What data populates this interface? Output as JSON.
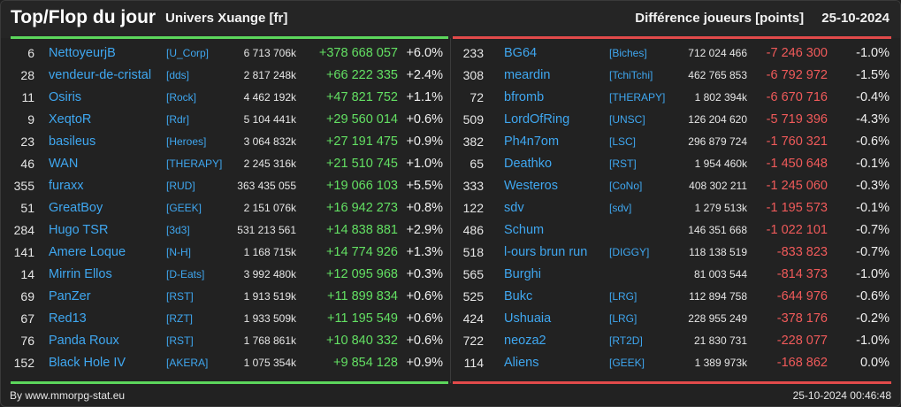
{
  "header": {
    "title": "Top/Flop du jour",
    "universe": "Univers Xuange [fr]",
    "metric": "Différence joueurs [points]",
    "date": "25-10-2024"
  },
  "colors": {
    "background": "#222222",
    "link": "#3fa7f0",
    "positive": "#63e063",
    "negative": "#f05a5a",
    "top_bar": "#5cd65c",
    "flop_bar": "#e24a4a"
  },
  "top": [
    {
      "rank": "6",
      "player": "NettoyeurjB",
      "alliance": "[U_Corp]",
      "points": "6 713 706k",
      "diff": "+378 668 057",
      "pct": "+6.0%"
    },
    {
      "rank": "28",
      "player": "vendeur-de-cristal",
      "alliance": "[dds]",
      "points": "2 817 248k",
      "diff": "+66 222 335",
      "pct": "+2.4%"
    },
    {
      "rank": "11",
      "player": "Osiris",
      "alliance": "[Rock]",
      "points": "4 462 192k",
      "diff": "+47 821 752",
      "pct": "+1.1%"
    },
    {
      "rank": "9",
      "player": "XeqtoR",
      "alliance": "[Rdr]",
      "points": "5 104 441k",
      "diff": "+29 560 014",
      "pct": "+0.6%"
    },
    {
      "rank": "23",
      "player": "basileus",
      "alliance": "[Heroes]",
      "points": "3 064 832k",
      "diff": "+27 191 475",
      "pct": "+0.9%"
    },
    {
      "rank": "46",
      "player": "WAN",
      "alliance": "[THERAPY]",
      "points": "2 245 316k",
      "diff": "+21 510 745",
      "pct": "+1.0%"
    },
    {
      "rank": "355",
      "player": "furaxx",
      "alliance": "[RUD]",
      "points": "363 435 055",
      "diff": "+19 066 103",
      "pct": "+5.5%"
    },
    {
      "rank": "51",
      "player": "GreatBoy",
      "alliance": "[GEEK]",
      "points": "2 151 076k",
      "diff": "+16 942 273",
      "pct": "+0.8%"
    },
    {
      "rank": "284",
      "player": "Hugo TSR",
      "alliance": "[3d3]",
      "points": "531 213 561",
      "diff": "+14 838 881",
      "pct": "+2.9%"
    },
    {
      "rank": "141",
      "player": "Amere Loque",
      "alliance": "[N-H]",
      "points": "1 168 715k",
      "diff": "+14 774 926",
      "pct": "+1.3%"
    },
    {
      "rank": "14",
      "player": "Mirrin Ellos",
      "alliance": "[D-Eats]",
      "points": "3 992 480k",
      "diff": "+12 095 968",
      "pct": "+0.3%"
    },
    {
      "rank": "69",
      "player": "PanZer",
      "alliance": "[RST]",
      "points": "1 913 519k",
      "diff": "+11 899 834",
      "pct": "+0.6%"
    },
    {
      "rank": "67",
      "player": "Red13",
      "alliance": "[RZT]",
      "points": "1 933 509k",
      "diff": "+11 195 549",
      "pct": "+0.6%"
    },
    {
      "rank": "76",
      "player": "Panda Roux",
      "alliance": "[RST]",
      "points": "1 768 861k",
      "diff": "+10 840 332",
      "pct": "+0.6%"
    },
    {
      "rank": "152",
      "player": "Black Hole IV",
      "alliance": "[AKERA]",
      "points": "1 075 354k",
      "diff": "+9 854 128",
      "pct": "+0.9%"
    }
  ],
  "flop": [
    {
      "rank": "233",
      "player": "BG64",
      "alliance": "[Biches]",
      "points": "712 024 466",
      "diff": "-7 246 300",
      "pct": "-1.0%"
    },
    {
      "rank": "308",
      "player": "meardin",
      "alliance": "[TchiTchi]",
      "points": "462 765 853",
      "diff": "-6 792 972",
      "pct": "-1.5%"
    },
    {
      "rank": "72",
      "player": "bfromb",
      "alliance": "[THERAPY]",
      "points": "1 802 394k",
      "diff": "-6 670 716",
      "pct": "-0.4%"
    },
    {
      "rank": "509",
      "player": "LordOfRing",
      "alliance": "[UNSC]",
      "points": "126 204 620",
      "diff": "-5 719 396",
      "pct": "-4.3%"
    },
    {
      "rank": "382",
      "player": "Ph4n7om",
      "alliance": "[LSC]",
      "points": "296 879 724",
      "diff": "-1 760 321",
      "pct": "-0.6%"
    },
    {
      "rank": "65",
      "player": "Deathko",
      "alliance": "[RST]",
      "points": "1 954 460k",
      "diff": "-1 450 648",
      "pct": "-0.1%"
    },
    {
      "rank": "333",
      "player": "Westeros",
      "alliance": "[CoNo]",
      "points": "408 302 211",
      "diff": "-1 245 060",
      "pct": "-0.3%"
    },
    {
      "rank": "122",
      "player": "sdv",
      "alliance": "[sdv]",
      "points": "1 279 513k",
      "diff": "-1 195 573",
      "pct": "-0.1%"
    },
    {
      "rank": "486",
      "player": "Schum",
      "alliance": "",
      "points": "146 351 668",
      "diff": "-1 022 101",
      "pct": "-0.7%"
    },
    {
      "rank": "518",
      "player": "l-ours brun run",
      "alliance": "[DIGGY]",
      "points": "118 138 519",
      "diff": "-833 823",
      "pct": "-0.7%"
    },
    {
      "rank": "565",
      "player": "Burghi",
      "alliance": "",
      "points": "81 003 544",
      "diff": "-814 373",
      "pct": "-1.0%"
    },
    {
      "rank": "525",
      "player": "Bukc",
      "alliance": "[LRG]",
      "points": "112 894 758",
      "diff": "-644 976",
      "pct": "-0.6%"
    },
    {
      "rank": "424",
      "player": "Ushuaia",
      "alliance": "[LRG]",
      "points": "228 955 249",
      "diff": "-378 176",
      "pct": "-0.2%"
    },
    {
      "rank": "722",
      "player": "neoza2",
      "alliance": "[RT2D]",
      "points": "21 830 731",
      "diff": "-228 077",
      "pct": "-1.0%"
    },
    {
      "rank": "114",
      "player": "Aliens",
      "alliance": "[GEEK]",
      "points": "1 389 973k",
      "diff": "-168 862",
      "pct": "0.0%"
    }
  ],
  "footer": {
    "credit": "By www.mmorpg-stat.eu",
    "timestamp": "25-10-2024 00:46:48"
  }
}
